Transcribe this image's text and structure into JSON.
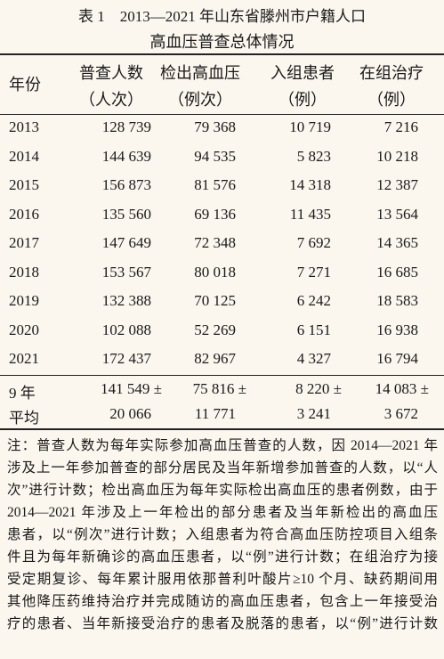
{
  "table": {
    "title": [
      "表 1　2013—2021 年山东省滕州市户籍人口",
      "高血压普查总体情况"
    ],
    "header": [
      [
        "年份"
      ],
      [
        "普查人数",
        "（人次）"
      ],
      [
        "检出高血压",
        "（例次）"
      ],
      [
        "入组患者",
        "（例）"
      ],
      [
        "在组治疗",
        "（例）"
      ]
    ],
    "rows": [
      [
        "2013",
        "128 739",
        "79 368",
        "10 719",
        "7 216"
      ],
      [
        "2014",
        "144 639",
        "94 535",
        "5 823",
        "10 218"
      ],
      [
        "2015",
        "156 873",
        "81 576",
        "14 318",
        "12 387"
      ],
      [
        "2016",
        "135 560",
        "69 136",
        "11 435",
        "13 564"
      ],
      [
        "2017",
        "147 649",
        "72 348",
        "7 692",
        "14 365"
      ],
      [
        "2018",
        "153 567",
        "80 018",
        "7 271",
        "16 685"
      ],
      [
        "2019",
        "132 388",
        "70 125",
        "6 242",
        "18 583"
      ],
      [
        "2020",
        "102 088",
        "52 269",
        "6 151",
        "16 938"
      ],
      [
        "2021",
        "172 437",
        "82 967",
        "4 327",
        "16 794"
      ]
    ],
    "summary": [
      [
        "9 年",
        "平均"
      ],
      [
        "141 549 ±",
        "20 066"
      ],
      [
        "75 816 ±",
        "11 771"
      ],
      [
        "8 220 ±",
        "3 241"
      ],
      [
        "14 083 ±",
        "3 672"
      ]
    ]
  },
  "note": {
    "lines": [
      "注：普查人数为每年实际参加高血压普查的人数，因 2014—2021 年",
      "涉及上一年参加普查的部分居民及当年新增参加普查的人数，以“人",
      "次”进行计数；检出高血压为每年实际检出高血压的患者例数，由于",
      "2014—2021 年涉及上一年检出的部分患者及当年新检出的高血压",
      "患者，以“例次”进行计数；入组患者为符合高血压防控项目入组条",
      "件且为每年新确诊的高血压患者，以“例”进行计数；在组治疗为接",
      "受定期复诊、每年累计服用依那普利叶酸片≥10 个月、缺药期间用",
      "其他降压药维持治疗并完成随访的高血压患者，包含上一年接受治",
      "疗的患者、当年新接受治疗的患者及脱落的患者，以“例”进行计数"
    ]
  }
}
